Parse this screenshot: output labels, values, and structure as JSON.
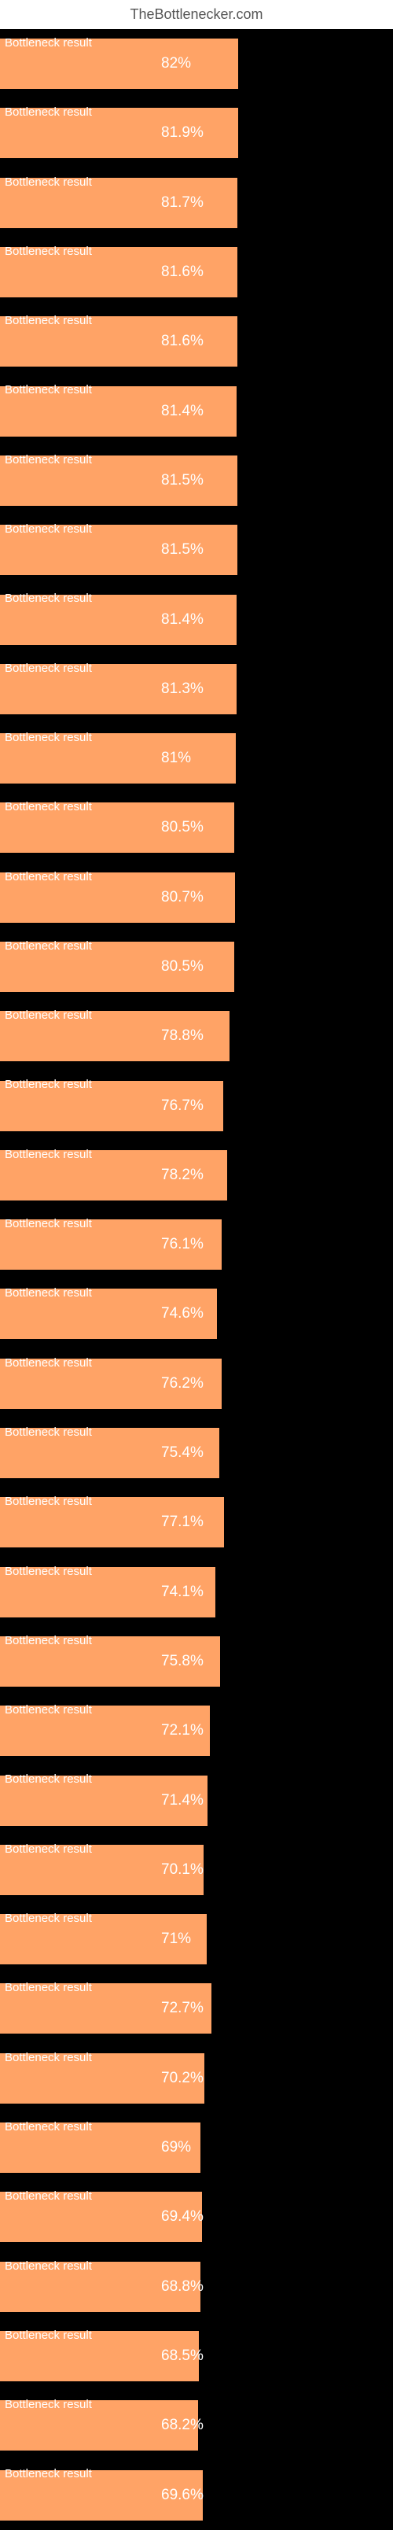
{
  "header": "TheBottlenecker.com",
  "chart": {
    "type": "bar",
    "background_color": "#000000",
    "bar_color": "#ffa366",
    "label_color": "#ffffff",
    "label_text": "Bottleneck result",
    "label_fontsize": 15,
    "value_fontsize": 19,
    "full_width": 370,
    "value_offset": 205,
    "rows": [
      {
        "percent": 82.0,
        "display": "82%"
      },
      {
        "percent": 81.9,
        "display": "81.9%"
      },
      {
        "percent": 81.7,
        "display": "81.7%"
      },
      {
        "percent": 81.6,
        "display": "81.6%"
      },
      {
        "percent": 81.6,
        "display": "81.6%"
      },
      {
        "percent": 81.4,
        "display": "81.4%"
      },
      {
        "percent": 81.5,
        "display": "81.5%"
      },
      {
        "percent": 81.5,
        "display": "81.5%"
      },
      {
        "percent": 81.4,
        "display": "81.4%"
      },
      {
        "percent": 81.3,
        "display": "81.3%"
      },
      {
        "percent": 81.0,
        "display": "81%"
      },
      {
        "percent": 80.5,
        "display": "80.5%"
      },
      {
        "percent": 80.7,
        "display": "80.7%"
      },
      {
        "percent": 80.5,
        "display": "80.5%"
      },
      {
        "percent": 78.8,
        "display": "78.8%"
      },
      {
        "percent": 76.7,
        "display": "76.7%"
      },
      {
        "percent": 78.2,
        "display": "78.2%"
      },
      {
        "percent": 76.1,
        "display": "76.1%"
      },
      {
        "percent": 74.6,
        "display": "74.6%"
      },
      {
        "percent": 76.2,
        "display": "76.2%"
      },
      {
        "percent": 75.4,
        "display": "75.4%"
      },
      {
        "percent": 77.1,
        "display": "77.1%"
      },
      {
        "percent": 74.1,
        "display": "74.1%"
      },
      {
        "percent": 75.8,
        "display": "75.8%"
      },
      {
        "percent": 72.1,
        "display": "72.1%"
      },
      {
        "percent": 71.4,
        "display": "71.4%"
      },
      {
        "percent": 70.1,
        "display": "70.1%"
      },
      {
        "percent": 71.0,
        "display": "71%"
      },
      {
        "percent": 72.7,
        "display": "72.7%"
      },
      {
        "percent": 70.2,
        "display": "70.2%"
      },
      {
        "percent": 69.0,
        "display": "69%"
      },
      {
        "percent": 69.4,
        "display": "69.4%"
      },
      {
        "percent": 68.8,
        "display": "68.8%"
      },
      {
        "percent": 68.5,
        "display": "68.5%"
      },
      {
        "percent": 68.2,
        "display": "68.2%"
      },
      {
        "percent": 69.6,
        "display": "69.6%"
      }
    ]
  }
}
